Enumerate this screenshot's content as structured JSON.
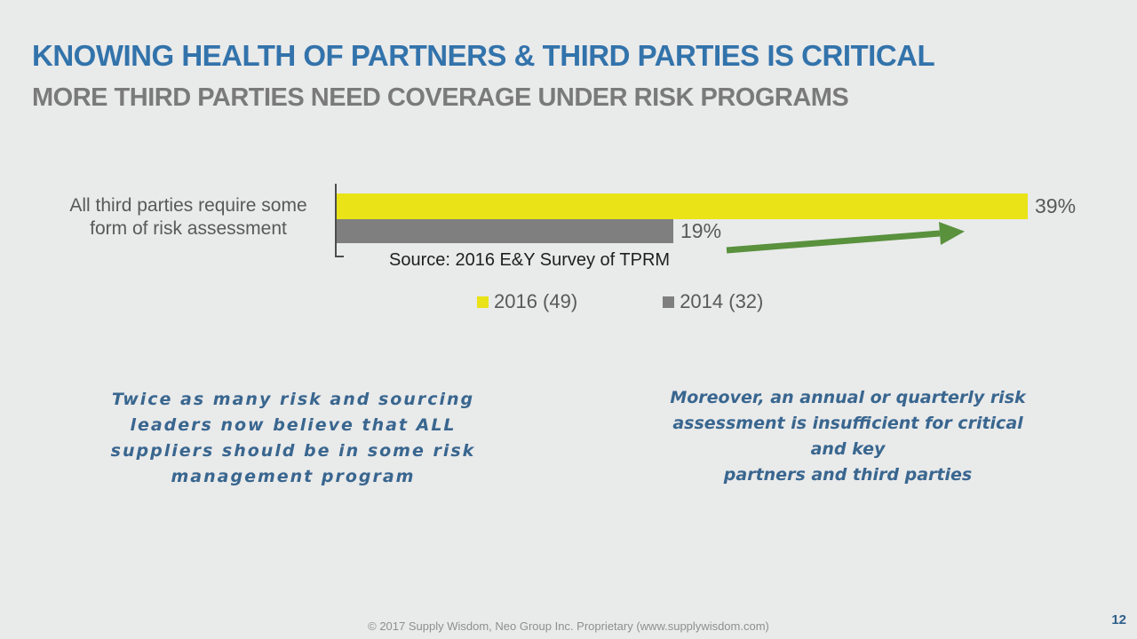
{
  "slide": {
    "title": "KNOWING HEALTH OF PARTNERS & THIRD PARTIES IS CRITICAL",
    "subtitle": "MORE THIRD PARTIES NEED COVERAGE UNDER RISK PROGRAMS",
    "footer": "© 2017 Supply Wisdom, Neo Group Inc. Proprietary (www.supplywisdom.com)",
    "page_number": "12"
  },
  "chart_data": {
    "type": "bar",
    "orientation": "horizontal",
    "categories": [
      "All third parties require some form of risk assessment"
    ],
    "category_label_lines": [
      "All third parties require some",
      "form of risk assessment"
    ],
    "series": [
      {
        "name": "2016 (49)",
        "values": [
          39
        ],
        "color": "#e9e318"
      },
      {
        "name": "2014 (32)",
        "values": [
          19
        ],
        "color": "#7f7f7f"
      }
    ],
    "data_labels": [
      "39%",
      "19%"
    ],
    "unit": "%",
    "xlim": [
      0,
      39
    ],
    "grid": false,
    "legend_position": "bottom",
    "source_note": "Source: 2016 E&Y Survey of TPRM"
  },
  "callouts": {
    "left_lines": [
      "Twice as many risk and sourcing",
      "leaders now believe that ALL",
      "suppliers should be in some risk",
      "management program"
    ],
    "right_lines": [
      "Moreover, an annual or quarterly risk",
      "assessment is insufficient for critical and key",
      "partners and third parties"
    ]
  },
  "colors": {
    "background": "#e9eaea",
    "title_blue": "#3273ab",
    "subtitle_gray": "#7a7a7a",
    "bar_2016_yellow": "#e9e318",
    "bar_2014_gray": "#7f7f7f",
    "label_gray": "#595959",
    "callout_blue": "#39668f",
    "arrow_green": "#59913d",
    "page_number_blue": "#2e5f8a"
  }
}
